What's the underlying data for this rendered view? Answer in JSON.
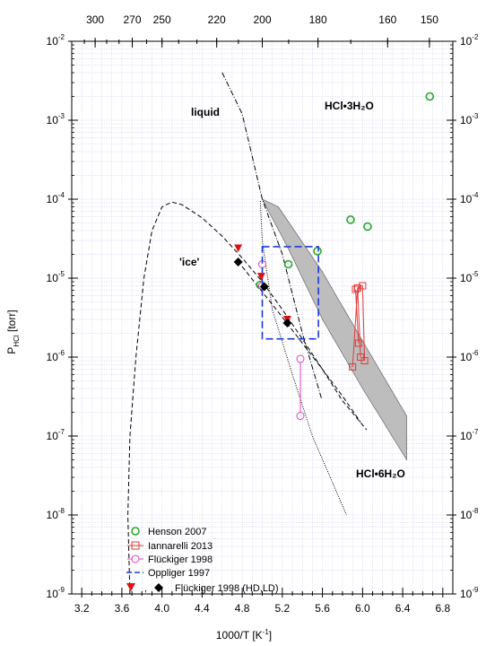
{
  "chart_data": {
    "type": "scatter",
    "title": "",
    "xlabel": "1000/T [K",
    "xlabel_sup": "-1",
    "xlabel_end": "]",
    "ylabel_main": "P",
    "ylabel_sub": "HCl",
    "ylabel_unit": " [torr]",
    "x_scale": "linear",
    "y_scale": "log",
    "xlim": [
      3.1,
      6.9
    ],
    "ylim": [
      1e-09,
      0.01
    ],
    "grid": true,
    "x_ticks": [
      3.2,
      3.6,
      4.0,
      4.4,
      4.8,
      5.2,
      5.6,
      6.0,
      6.4,
      6.8
    ],
    "x_tick_labels": [
      "3.2",
      "3.6",
      "4.0",
      "4.4",
      "4.8",
      "5.2",
      "5.6",
      "6.0",
      "6.4",
      "6.8"
    ],
    "top_axis": {
      "ticks": [
        300,
        270,
        250,
        220,
        200,
        180,
        160,
        150
      ],
      "tick_labels": [
        "300",
        "270",
        "250",
        "220",
        "200",
        "180",
        "160",
        "150"
      ]
    },
    "y_tick_exponents": [
      "-9",
      "-8",
      "-7",
      "-6",
      "-5",
      "-4",
      "-3",
      "-2"
    ],
    "y_tick_base": "10",
    "region_labels": {
      "liquid": "liquid",
      "ice": "'ice'",
      "trihydrate": "HCl•3H₂O",
      "hexahydrate": "HCl•6H₂O"
    },
    "legend_placement": "bottom-left",
    "legend": {
      "henson": "Henson 2007",
      "iannarelli": "Iannarelli 2013",
      "fluckiger": "Flückiger 1998",
      "oppliger": "Oppliger 1997",
      "fluckiger_hdld": "Flückiger 1998 (HD,LD)",
      "fluckiger_hdld_sep": ","
    },
    "series": [
      {
        "name": "Henson 2007",
        "style": "open-circle",
        "color": "#22aa22",
        "points": [
          [
            4.98,
            8.2e-06
          ],
          [
            5.26,
            1.5e-05
          ],
          [
            5.55,
            2.2e-05
          ],
          [
            5.88,
            5.5e-05
          ],
          [
            6.05,
            4.5e-05
          ],
          [
            6.67,
            0.002
          ]
        ]
      },
      {
        "name": "Iannarelli 2013",
        "style": "open-square-line",
        "color": "#e03a3a",
        "segments": [
          [
            [
              5.9,
              7.5e-07
            ],
            [
              5.95,
              7.5e-06
            ],
            [
              5.98,
              1e-06
            ]
          ],
          [
            [
              5.95,
              7.5e-06
            ],
            [
              6.0,
              8e-06
            ],
            [
              6.02,
              9e-07
            ]
          ],
          [
            [
              5.93,
              7.2e-06
            ],
            [
              5.96,
              1.5e-06
            ]
          ]
        ]
      },
      {
        "name": "Flückiger 1998",
        "style": "open-circle-line",
        "color": "#e040c0",
        "segments": [
          [
            [
              5.0,
              1.5e-05
            ],
            [
              5.0,
              8e-06
            ]
          ],
          [
            [
              5.38,
              9.5e-07
            ],
            [
              5.38,
              1.8e-07
            ]
          ]
        ]
      },
      {
        "name": "Oppliger 1997",
        "style": "dashed-box",
        "color": "#1a3ad8",
        "box": {
          "x": [
            5.0,
            5.56
          ],
          "y": [
            1.7e-06,
            2.5e-05
          ]
        }
      },
      {
        "name": "",
        "style": "filled-triangle-down",
        "color": "#e01010",
        "points": [
          [
            4.76,
            2.4e-05
          ],
          [
            4.99,
            1.05e-05
          ],
          [
            5.25,
            3e-06
          ]
        ]
      },
      {
        "name": "Flückiger 1998 (HD,LD)",
        "style": "filled-diamond",
        "color": "#000000",
        "points": [
          [
            4.76,
            1.6e-05
          ],
          [
            5.02,
            7.8e-06
          ],
          [
            5.25,
            2.7e-06
          ]
        ]
      }
    ],
    "curves": {
      "ice_dashed": [
        [
          3.68,
          1e-09
        ],
        [
          3.66,
          1e-08
        ],
        [
          3.68,
          1e-07
        ],
        [
          3.74,
          1e-06
        ],
        [
          3.82,
          1e-05
        ],
        [
          3.9,
          4e-05
        ],
        [
          4.0,
          8e-05
        ],
        [
          4.1,
          9.2e-05
        ],
        [
          4.2,
          8.5e-05
        ],
        [
          4.4,
          5.8e-05
        ],
        [
          4.6,
          3.4e-05
        ],
        [
          4.8,
          1.8e-05
        ],
        [
          5.0,
          9e-06
        ],
        [
          5.2,
          4e-06
        ],
        [
          5.4,
          1.7e-06
        ],
        [
          5.6,
          7e-07
        ],
        [
          5.8,
          2.8e-07
        ],
        [
          6.04,
          1.2e-07
        ]
      ],
      "ice_dashed_tail": [
        [
          4.8,
          1.4e-05
        ],
        [
          5.2,
          3.2e-06
        ],
        [
          5.6,
          7e-07
        ],
        [
          5.8,
          3.2e-07
        ],
        [
          5.98,
          1.5e-07
        ]
      ],
      "liquid_dashdot": [
        [
          4.6,
          0.004
        ],
        [
          4.8,
          0.0012
        ],
        [
          5.0,
          0.0001
        ],
        [
          5.2,
          2e-05
        ],
        [
          5.4,
          2e-06
        ],
        [
          5.59,
          3e-07
        ]
      ],
      "dotted": [
        [
          4.98,
          9.5e-05
        ],
        [
          5.0,
          3e-05
        ],
        [
          5.1,
          4e-06
        ],
        [
          5.3,
          6e-07
        ],
        [
          5.5,
          1e-07
        ],
        [
          5.84,
          1e-08
        ]
      ],
      "hexahydrate_band": [
        [
          5.0,
          0.0001
        ],
        [
          5.16,
          8e-05
        ],
        [
          5.6,
          1.2e-05
        ],
        [
          6.0,
          1.6e-06
        ],
        [
          6.44,
          1.8e-07
        ],
        [
          6.44,
          5e-08
        ],
        [
          6.0,
          4e-07
        ],
        [
          5.6,
          3e-06
        ],
        [
          5.25,
          2.5e-05
        ],
        [
          5.0,
          0.0001
        ]
      ]
    },
    "colors": {
      "grid": "#c7c7e8",
      "band": "#bdbdbd",
      "axis": "#000000"
    }
  }
}
